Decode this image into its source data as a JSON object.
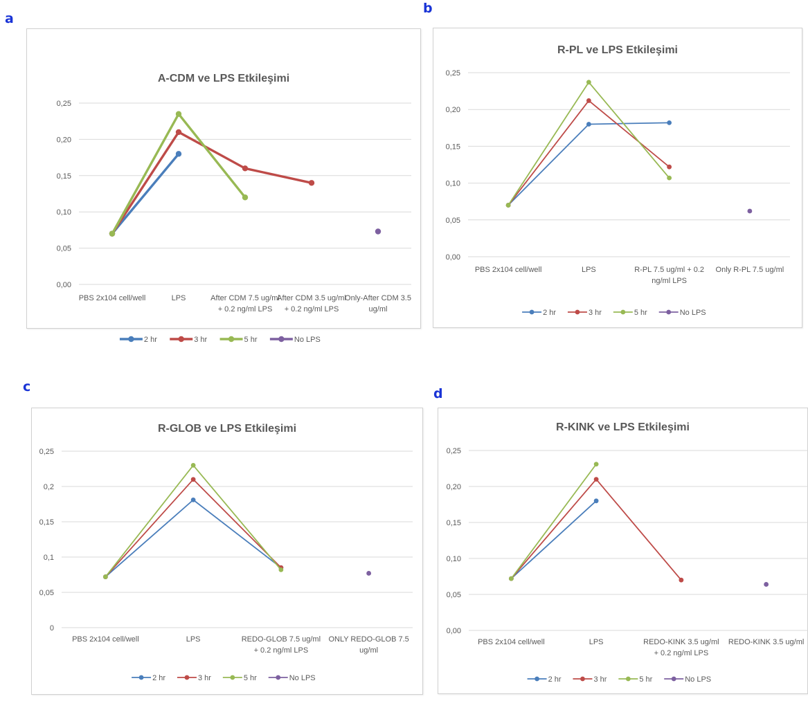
{
  "figure": {
    "panels": [
      "a",
      "b",
      "c",
      "d"
    ]
  },
  "chart_data": [
    {
      "panel": "a",
      "type": "line",
      "title": "A-CDM ve LPS  Etkileşimi",
      "ytick_labels": [
        "0,00",
        "0,05",
        "0,10",
        "0,15",
        "0,20",
        "0,25"
      ],
      "ylim": [
        0,
        0.25
      ],
      "grid": true,
      "legend_position": "bottom",
      "categories": [
        [
          "PBS  2x104 cell/well"
        ],
        [
          "LPS"
        ],
        [
          "After CDM 7.5 ug/ml",
          "+ 0.2 ng/ml LPS"
        ],
        [
          "After CDM 3.5 ug/ml",
          "+ 0.2 ng/ml LPS"
        ],
        [
          "Only-After CDM 3.5",
          "ug/ml"
        ]
      ],
      "series": [
        {
          "name": "2 hr",
          "color": "#4a7ebb",
          "values": [
            0.07,
            0.18,
            null,
            null,
            null
          ]
        },
        {
          "name": "3 hr",
          "color": "#be4b48",
          "values": [
            0.07,
            0.21,
            0.16,
            0.14,
            null
          ]
        },
        {
          "name": "5 hr",
          "color": "#98b954",
          "values": [
            0.07,
            0.235,
            0.12,
            null,
            null
          ]
        },
        {
          "name": "No LPS",
          "color": "#7d60a0",
          "values": [
            null,
            null,
            null,
            null,
            0.073
          ]
        }
      ]
    },
    {
      "panel": "b",
      "type": "line",
      "title": "R-PL ve LPS  Etkileşimi",
      "ytick_labels": [
        "0,00",
        "0,05",
        "0,10",
        "0,15",
        "0,20",
        "0,25"
      ],
      "ylim": [
        0,
        0.25
      ],
      "grid": true,
      "legend_position": "bottom",
      "categories": [
        [
          "PBS  2x104 cell/well"
        ],
        [
          "LPS"
        ],
        [
          "R-PL 7.5 ug/ml +  0.2",
          "ng/ml LPS"
        ],
        [
          "Only R-PL 7.5 ug/ml"
        ]
      ],
      "series": [
        {
          "name": "2 hr",
          "color": "#4a7ebb",
          "values": [
            0.07,
            0.18,
            0.182,
            null
          ]
        },
        {
          "name": "3 hr",
          "color": "#be4b48",
          "values": [
            0.07,
            0.212,
            0.122,
            null
          ]
        },
        {
          "name": "5 hr",
          "color": "#98b954",
          "values": [
            0.07,
            0.237,
            0.107,
            null
          ]
        },
        {
          "name": "No LPS",
          "color": "#7d60a0",
          "values": [
            null,
            null,
            null,
            0.062
          ]
        }
      ]
    },
    {
      "panel": "c",
      "type": "line",
      "title": "R-GLOB ve LPS Etkileşimi",
      "ytick_labels": [
        "0",
        "0,05",
        "0,1",
        "0,15",
        "0,2",
        "0,25"
      ],
      "ylim": [
        0,
        0.25
      ],
      "grid": true,
      "legend_position": "bottom",
      "categories": [
        [
          "PBS  2x104 cell/well"
        ],
        [
          "LPS"
        ],
        [
          "REDO-GLOB 7.5 ug/ml",
          "+ 0.2 ng/ml LPS"
        ],
        [
          "ONLY REDO-GLOB 7.5",
          "ug/ml"
        ]
      ],
      "series": [
        {
          "name": "2 hr",
          "color": "#4a7ebb",
          "values": [
            0.072,
            0.181,
            0.085,
            null
          ]
        },
        {
          "name": "3 hr",
          "color": "#be4b48",
          "values": [
            0.072,
            0.21,
            0.085,
            null
          ]
        },
        {
          "name": "5 hr",
          "color": "#98b954",
          "values": [
            0.072,
            0.23,
            0.082,
            null
          ]
        },
        {
          "name": "No LPS",
          "color": "#7d60a0",
          "values": [
            null,
            null,
            null,
            0.077
          ]
        }
      ]
    },
    {
      "panel": "d",
      "type": "line",
      "title": "R-KINK ve LPS Etkileşimi",
      "ytick_labels": [
        "0,00",
        "0,05",
        "0,10",
        "0,15",
        "0,20",
        "0,25"
      ],
      "ylim": [
        0,
        0.25
      ],
      "grid": true,
      "legend_position": "bottom",
      "categories": [
        [
          "PBS  2x104 cell/well"
        ],
        [
          "LPS"
        ],
        [
          "REDO-KINK 3.5 ug/ml",
          "+ 0.2 ng/ml LPS"
        ],
        [
          "REDO-KINK 3.5 ug/ml"
        ]
      ],
      "series": [
        {
          "name": "2 hr",
          "color": "#4a7ebb",
          "values": [
            0.072,
            0.18,
            null,
            null
          ]
        },
        {
          "name": "3 hr",
          "color": "#be4b48",
          "values": [
            0.072,
            0.21,
            0.07,
            null
          ]
        },
        {
          "name": "5 hr",
          "color": "#98b954",
          "values": [
            0.072,
            0.231,
            null,
            null
          ]
        },
        {
          "name": "No LPS",
          "color": "#7d60a0",
          "values": [
            null,
            null,
            null,
            0.064
          ]
        }
      ]
    }
  ]
}
